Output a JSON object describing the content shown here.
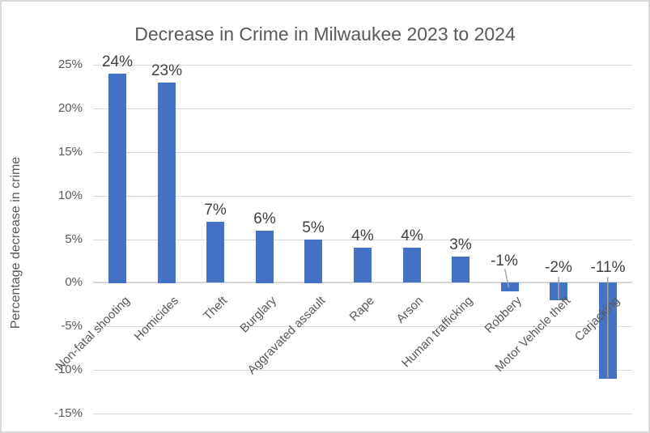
{
  "chart_data": {
    "type": "bar",
    "title": "Decrease in Crime in Milwaukee 2023 to 2024",
    "ylabel": "Percentage decrease in crime",
    "xlabel": "",
    "categories": [
      "Non-fatal shooting",
      "Homicides",
      "Theft",
      "Burglary",
      "Aggravated assault",
      "Rape",
      "Arson",
      "Human trafficking",
      "Robbery",
      "Motor Vehicle theft",
      "Carjacking"
    ],
    "values": [
      24,
      23,
      7,
      6,
      5,
      4,
      4,
      3,
      -1,
      -2,
      -11
    ],
    "data_labels": [
      "24%",
      "23%",
      "7%",
      "6%",
      "5%",
      "4%",
      "4%",
      "3%",
      "-1%",
      "-2%",
      "-11%"
    ],
    "ylim": [
      -15,
      25
    ],
    "ytick_step": 5,
    "ytick_values": [
      25,
      20,
      15,
      10,
      5,
      0,
      -5,
      -10,
      -15
    ],
    "ytick_labels": [
      "25%",
      "20%",
      "15%",
      "10%",
      "5%",
      "0%",
      "-5%",
      "-10%",
      "-15%"
    ],
    "grid": true,
    "legend": "none",
    "category_label_rotation_deg": 45,
    "leader_lines": [
      {
        "index": 8,
        "shape": "diagonal"
      },
      {
        "index": 9,
        "shape": "vertical"
      },
      {
        "index": 10,
        "shape": "vertical"
      }
    ],
    "colors": {
      "bar": "#4472C4",
      "gridline": "#D9D9D9",
      "zero_line": "#D6D6D6",
      "axis_text": "#595959",
      "data_label_text": "#404040",
      "leader_line": "#A6A6A6",
      "border": "#D9D9D9",
      "background": "#FFFFFF"
    }
  }
}
